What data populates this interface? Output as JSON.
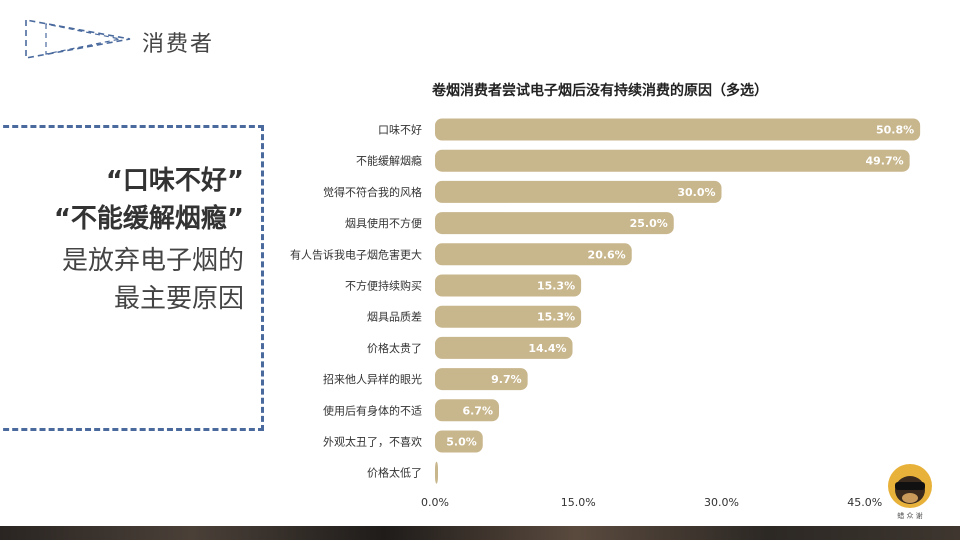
{
  "header": {
    "section_title": "消费者"
  },
  "quote": {
    "line1": "“口味不好”",
    "line2": "“不能缓解烟瘾”",
    "line3": "是放弃电子烟的",
    "line4": "最主要原因"
  },
  "brand": {
    "name": "蜡 众 谢"
  },
  "colors": {
    "bar": "#c8b68c",
    "frame": "#4a6a9e",
    "label_on_bar": "#ffffff"
  },
  "chart_data": {
    "type": "bar",
    "orientation": "horizontal",
    "title": "卷烟消费者尝试电子烟后没有持续消费的原因（多选）",
    "categories": [
      "口味不好",
      "不能缓解烟瘾",
      "觉得不符合我的风格",
      "烟具使用不方便",
      "有人告诉我电子烟危害更大",
      "不方便持续购买",
      "烟具品质差",
      "价格太贵了",
      "招来他人异样的眼光",
      "使用后有身体的不适",
      "外观太丑了，不喜欢",
      "价格太低了"
    ],
    "values": [
      50.8,
      49.7,
      30.0,
      25.0,
      20.6,
      15.3,
      15.3,
      14.4,
      9.7,
      6.7,
      5.0,
      0.3
    ],
    "value_labels": [
      "50.8%",
      "49.7%",
      "30.0%",
      "25.0%",
      "20.6%",
      "15.3%",
      "15.3%",
      "14.4%",
      "9.7%",
      "6.7%",
      "5.0%",
      ""
    ],
    "x_ticks": [
      0,
      15,
      30,
      45
    ],
    "x_tick_labels": [
      "0.0%",
      "15.0%",
      "30.0%",
      "45.0%"
    ],
    "xlim": [
      0,
      52
    ],
    "grid": false,
    "legend": "none"
  }
}
